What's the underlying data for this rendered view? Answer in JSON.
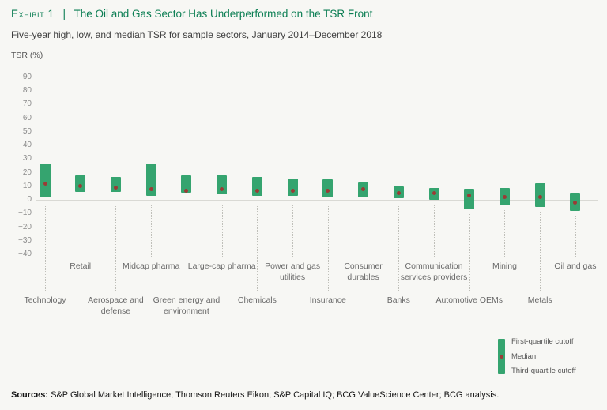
{
  "header": {
    "exhibit_label": "Exhibit 1",
    "divider": "|",
    "title": "The Oil and Gas Sector Has Underperformed on the TSR Front",
    "subtitle": "Five-year high, low, and median TSR for sample sectors, January 2014–December 2018"
  },
  "chart_data": {
    "type": "bar",
    "title": "Five-year high, low, and median TSR for sample sectors, January 2014–December 2018",
    "ylabel": "TSR (%)",
    "ylim": [
      -40,
      90
    ],
    "yticks": [
      90,
      80,
      70,
      60,
      50,
      40,
      30,
      20,
      10,
      0,
      -10,
      -20,
      -30,
      -40
    ],
    "grid": false,
    "legend_position": "bottom-right",
    "categories": [
      "Technology",
      "Retail",
      "Aerospace and defense",
      "Midcap pharma",
      "Green energy and environment",
      "Large-cap pharma",
      "Chemicals",
      "Power and gas utilities",
      "Insurance",
      "Consumer durables",
      "Banks",
      "Communication services providers",
      "Automotive OEMs",
      "Mining",
      "Metals",
      "Oil and gas"
    ],
    "series": [
      {
        "name": "First-quartile cutoff",
        "values": [
          27,
          18,
          17,
          27,
          18,
          18,
          17,
          16,
          15,
          13,
          10,
          9,
          8,
          9,
          12,
          5
        ]
      },
      {
        "name": "Median",
        "values": [
          12,
          10,
          9,
          8,
          7,
          8,
          7,
          7,
          7,
          8,
          5,
          5,
          3,
          2,
          2,
          -2
        ]
      },
      {
        "name": "Third-quartile cutoff",
        "values": [
          2,
          6,
          6,
          3,
          5,
          4,
          3,
          3,
          2,
          2,
          1,
          0,
          -7,
          -4,
          -5,
          -8
        ]
      }
    ]
  },
  "colors": {
    "bar_green": "#35a46f",
    "median_red": "#9a3b36",
    "title_green": "#0b7e53",
    "background": "#f7f7f4"
  },
  "sources": {
    "label": "Sources:",
    "text": " S&P Global Market Intelligence; Thomson Reuters Eikon; S&P Capital IQ; BCG ValueScience Center; BCG analysis."
  }
}
